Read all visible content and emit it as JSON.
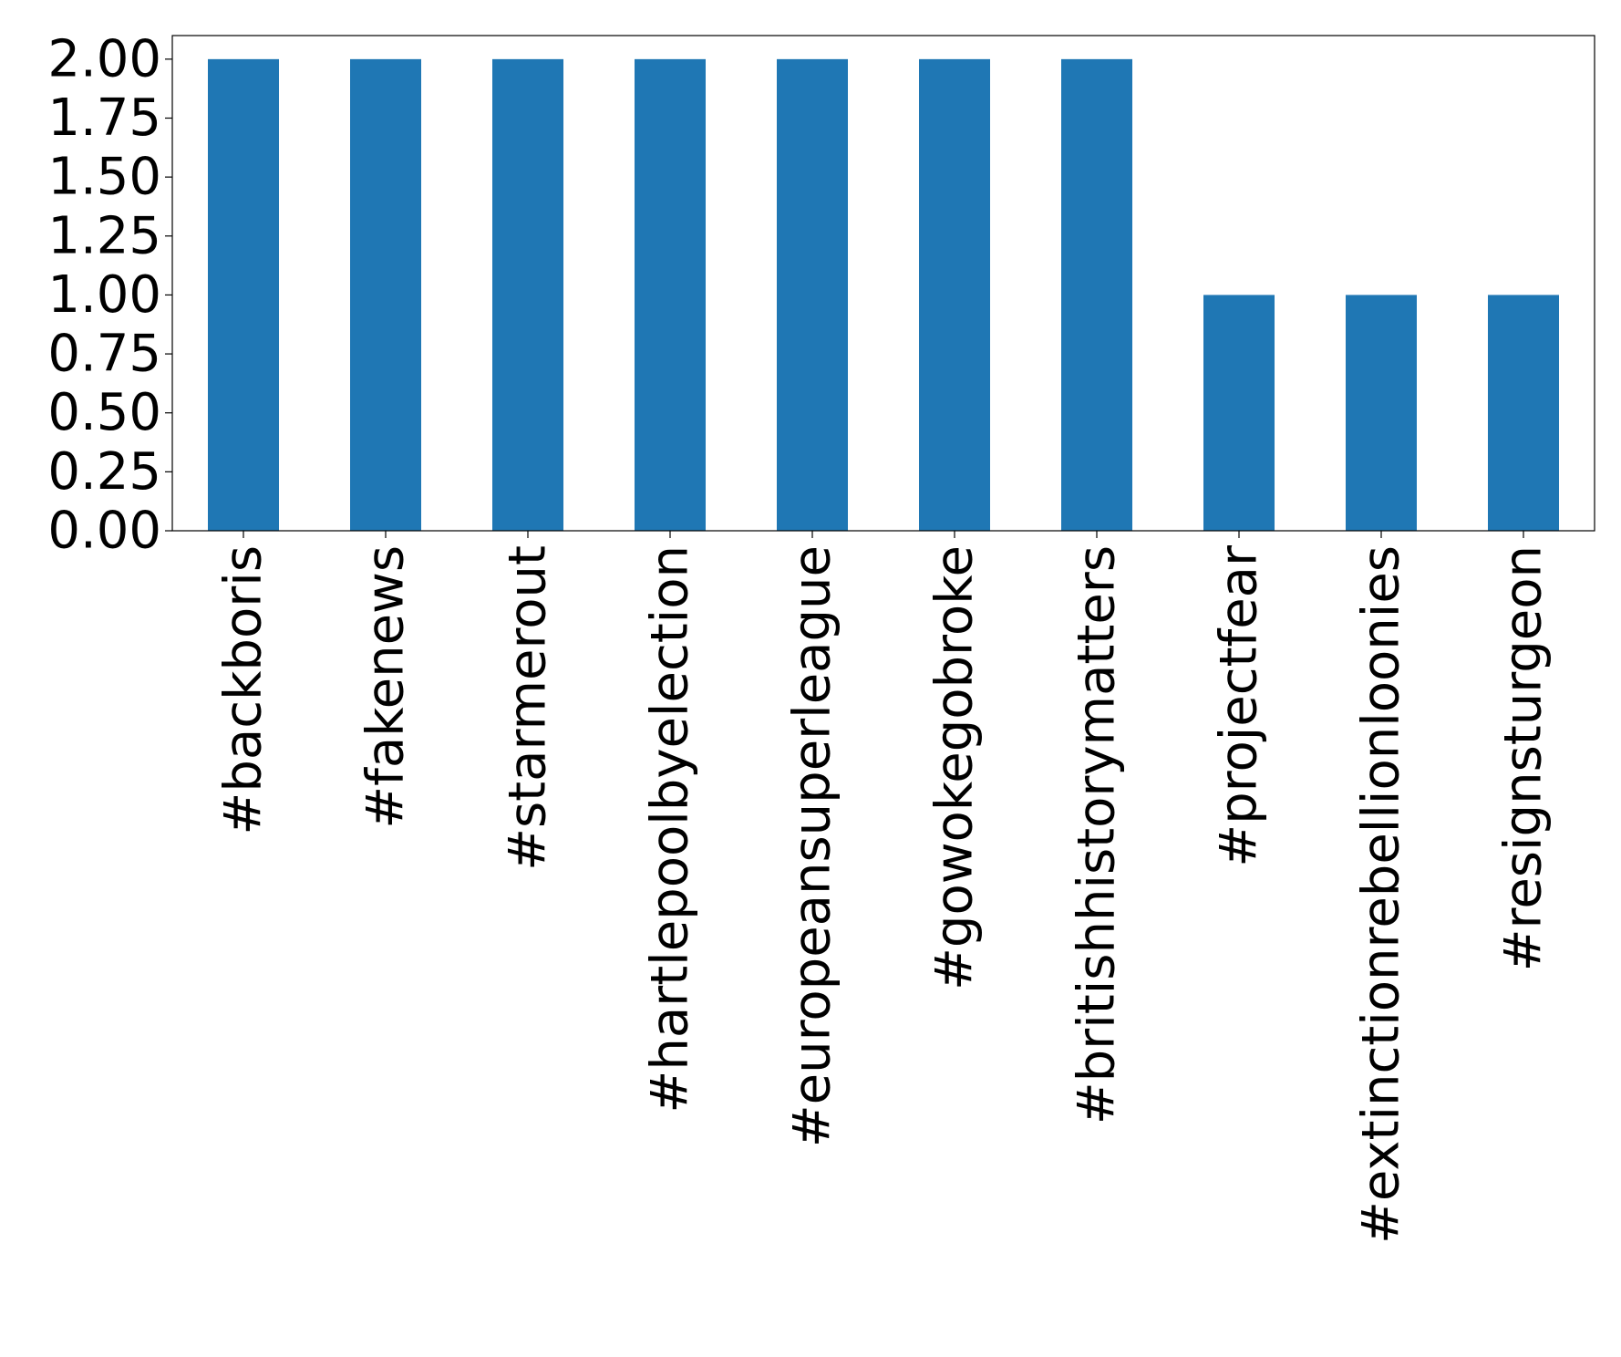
{
  "chart_data": {
    "type": "bar",
    "title": "",
    "xlabel": "",
    "ylabel": "",
    "categories": [
      "#backboris",
      "#fakenews",
      "#starmerout",
      "#hartlepoolbyelection",
      "#europeansuperleague",
      "#gowokegobroke",
      "#britishhistorymatters",
      "#projectfear",
      "#extinctionrebellionloonies",
      "#resignsturgeon"
    ],
    "values": [
      2,
      2,
      2,
      2,
      2,
      2,
      2,
      1,
      1,
      1
    ],
    "ylim": [
      0,
      2.1
    ],
    "yticks": [
      0.0,
      0.25,
      0.5,
      0.75,
      1.0,
      1.25,
      1.5,
      1.75,
      2.0
    ],
    "ytick_labels": [
      "0.00",
      "0.25",
      "0.50",
      "0.75",
      "1.00",
      "1.25",
      "1.50",
      "1.75",
      "2.00"
    ],
    "bar_color": "#1f77b4",
    "grid": false,
    "legend": "none"
  }
}
